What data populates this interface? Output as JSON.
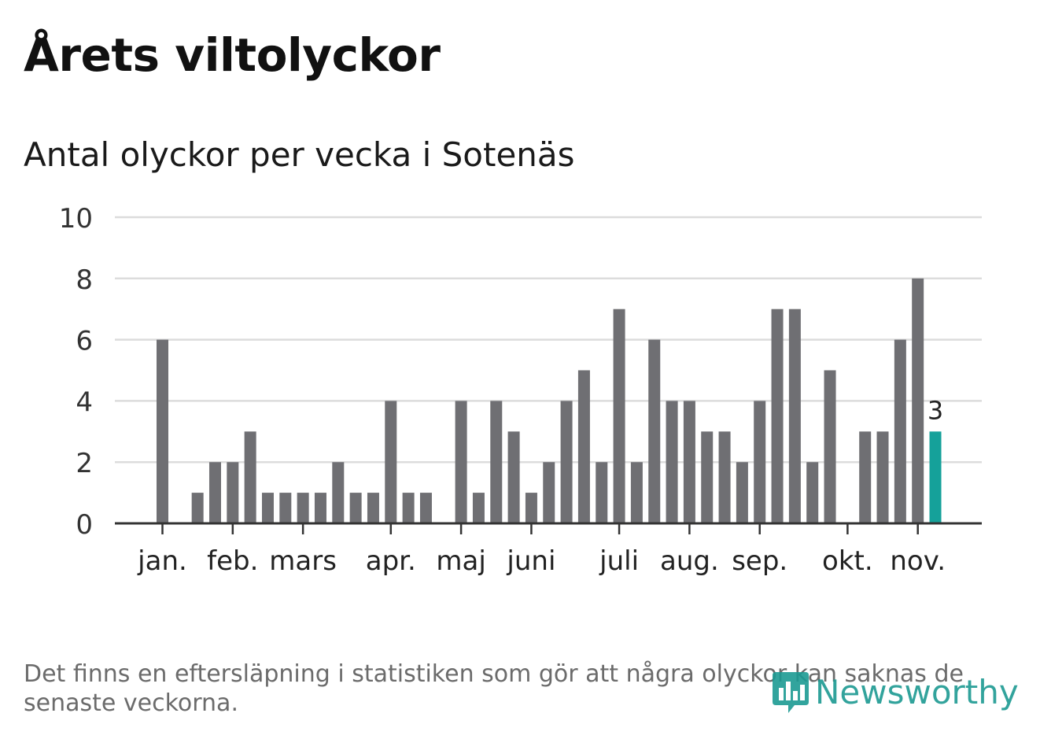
{
  "header": {
    "title": "Årets viltolyckor",
    "subtitle": "Antal olyckor per vecka i Sotenäs"
  },
  "footer": {
    "note": "Det finns en eftersläpning i statistiken som gör att några olyckor kan saknas de senaste veckorna.",
    "brand": "Newsworthy"
  },
  "colors": {
    "bar": "#6f6f73",
    "highlight": "#15a19a",
    "grid": "#dcdcdc",
    "axis": "#333333"
  },
  "chart_data": {
    "type": "bar",
    "title": "Antal olyckor per vecka i Sotenäs",
    "xlabel": "",
    "ylabel": "",
    "ylim": [
      0,
      10
    ],
    "yticks": [
      0,
      2,
      4,
      6,
      8,
      10
    ],
    "grid": true,
    "values": [
      6,
      0,
      1,
      2,
      2,
      3,
      1,
      1,
      1,
      1,
      2,
      1,
      1,
      4,
      1,
      1,
      0,
      4,
      1,
      4,
      3,
      1,
      2,
      4,
      5,
      2,
      7,
      2,
      6,
      4,
      4,
      3,
      3,
      2,
      4,
      7,
      7,
      2,
      5,
      0,
      3,
      3,
      6,
      8,
      3
    ],
    "highlight_index": 44,
    "highlight_label": "3",
    "month_labels": [
      {
        "label": "jan.",
        "week_index": 0
      },
      {
        "label": "feb.",
        "week_index": 4
      },
      {
        "label": "mars",
        "week_index": 8
      },
      {
        "label": "apr.",
        "week_index": 13
      },
      {
        "label": "maj",
        "week_index": 17
      },
      {
        "label": "juni",
        "week_index": 21
      },
      {
        "label": "juli",
        "week_index": 26
      },
      {
        "label": "aug.",
        "week_index": 30
      },
      {
        "label": "sep.",
        "week_index": 34
      },
      {
        "label": "okt.",
        "week_index": 39
      },
      {
        "label": "nov.",
        "week_index": 43
      }
    ]
  }
}
